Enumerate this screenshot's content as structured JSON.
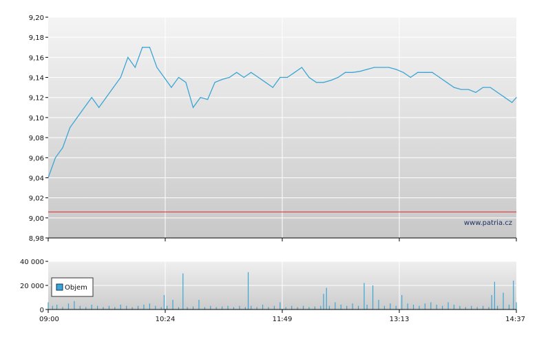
{
  "chart_data": [
    {
      "type": "line",
      "title": "",
      "xlabel": "",
      "ylabel": "",
      "ylim": [
        8.98,
        9.2
      ],
      "y_ticks": [
        "8,98",
        "9,00",
        "9,02",
        "9,04",
        "9,06",
        "9,08",
        "9,10",
        "9,12",
        "9,14",
        "9,16",
        "9,18",
        "9,20"
      ],
      "x_ticks": [
        "09:00",
        "10:24",
        "11:49",
        "13:13",
        "14:37"
      ],
      "reference_line": 9.006,
      "reference_color": "#e02020",
      "line_color": "#3aa5d5",
      "watermark": "www.patria.cz",
      "grid": true,
      "series": [
        {
          "values": [
            [
              0,
              9.04
            ],
            [
              5,
              9.06
            ],
            [
              10,
              9.07
            ],
            [
              15,
              9.09
            ],
            [
              20,
              9.1
            ],
            [
              25,
              9.11
            ],
            [
              30,
              9.12
            ],
            [
              35,
              9.11
            ],
            [
              40,
              9.12
            ],
            [
              45,
              9.13
            ],
            [
              50,
              9.14
            ],
            [
              55,
              9.16
            ],
            [
              60,
              9.15
            ],
            [
              65,
              9.17
            ],
            [
              70,
              9.17
            ],
            [
              75,
              9.15
            ],
            [
              80,
              9.14
            ],
            [
              85,
              9.13
            ],
            [
              90,
              9.14
            ],
            [
              95,
              9.135
            ],
            [
              100,
              9.11
            ],
            [
              105,
              9.12
            ],
            [
              110,
              9.118
            ],
            [
              115,
              9.135
            ],
            [
              120,
              9.138
            ],
            [
              125,
              9.14
            ],
            [
              130,
              9.145
            ],
            [
              135,
              9.14
            ],
            [
              140,
              9.145
            ],
            [
              145,
              9.14
            ],
            [
              150,
              9.135
            ],
            [
              155,
              9.13
            ],
            [
              160,
              9.14
            ],
            [
              165,
              9.14
            ],
            [
              170,
              9.145
            ],
            [
              175,
              9.15
            ],
            [
              180,
              9.14
            ],
            [
              185,
              9.135
            ],
            [
              190,
              9.135
            ],
            [
              195,
              9.137
            ],
            [
              200,
              9.14
            ],
            [
              205,
              9.145
            ],
            [
              210,
              9.145
            ],
            [
              215,
              9.146
            ],
            [
              220,
              9.148
            ],
            [
              225,
              9.15
            ],
            [
              230,
              9.15
            ],
            [
              235,
              9.15
            ],
            [
              240,
              9.148
            ],
            [
              245,
              9.145
            ],
            [
              250,
              9.14
            ],
            [
              255,
              9.145
            ],
            [
              260,
              9.145
            ],
            [
              265,
              9.145
            ],
            [
              270,
              9.14
            ],
            [
              275,
              9.135
            ],
            [
              280,
              9.13
            ],
            [
              285,
              9.128
            ],
            [
              290,
              9.128
            ],
            [
              295,
              9.125
            ],
            [
              300,
              9.13
            ],
            [
              305,
              9.13
            ],
            [
              310,
              9.125
            ],
            [
              315,
              9.12
            ],
            [
              320,
              9.115
            ],
            [
              323,
              9.12
            ]
          ]
        }
      ]
    },
    {
      "type": "bar",
      "title": "",
      "ylim": [
        0,
        40000
      ],
      "y_ticks": [
        "0",
        "20 000",
        "40 000"
      ],
      "x_ticks": [
        "09:00",
        "10:24",
        "11:49",
        "13:13",
        "14:37"
      ],
      "legend": "Objem",
      "legend_position": "left",
      "bar_color": "#3aa5d5",
      "grid": true,
      "values": [
        [
          0,
          6000
        ],
        [
          3,
          3000
        ],
        [
          6,
          4000
        ],
        [
          10,
          2000
        ],
        [
          14,
          5000
        ],
        [
          18,
          7000
        ],
        [
          22,
          3000
        ],
        [
          26,
          2000
        ],
        [
          30,
          4000
        ],
        [
          34,
          3000
        ],
        [
          38,
          2000
        ],
        [
          42,
          3000
        ],
        [
          46,
          2000
        ],
        [
          50,
          4000
        ],
        [
          54,
          3000
        ],
        [
          58,
          2000
        ],
        [
          62,
          3000
        ],
        [
          66,
          4000
        ],
        [
          70,
          5000
        ],
        [
          74,
          3000
        ],
        [
          78,
          2000
        ],
        [
          80,
          12000
        ],
        [
          82,
          3000
        ],
        [
          86,
          8000
        ],
        [
          90,
          2000
        ],
        [
          93,
          30000
        ],
        [
          96,
          2000
        ],
        [
          100,
          2500
        ],
        [
          104,
          8000
        ],
        [
          108,
          2000
        ],
        [
          112,
          3000
        ],
        [
          116,
          2000
        ],
        [
          120,
          2500
        ],
        [
          124,
          3000
        ],
        [
          128,
          2000
        ],
        [
          132,
          3000
        ],
        [
          136,
          2000
        ],
        [
          138,
          31000
        ],
        [
          140,
          3000
        ],
        [
          144,
          2000
        ],
        [
          148,
          4000
        ],
        [
          152,
          2000
        ],
        [
          156,
          3000
        ],
        [
          160,
          6000
        ],
        [
          164,
          2000
        ],
        [
          168,
          3000
        ],
        [
          172,
          2000
        ],
        [
          176,
          3000
        ],
        [
          180,
          2000
        ],
        [
          184,
          2500
        ],
        [
          188,
          3000
        ],
        [
          190,
          13000
        ],
        [
          192,
          18000
        ],
        [
          194,
          3000
        ],
        [
          198,
          6000
        ],
        [
          202,
          4000
        ],
        [
          206,
          3000
        ],
        [
          210,
          5000
        ],
        [
          214,
          3000
        ],
        [
          218,
          22000
        ],
        [
          220,
          4000
        ],
        [
          224,
          20000
        ],
        [
          228,
          8000
        ],
        [
          232,
          3000
        ],
        [
          236,
          5000
        ],
        [
          240,
          3000
        ],
        [
          244,
          12000
        ],
        [
          248,
          5000
        ],
        [
          252,
          4000
        ],
        [
          256,
          3000
        ],
        [
          260,
          5000
        ],
        [
          264,
          6000
        ],
        [
          268,
          4000
        ],
        [
          272,
          3000
        ],
        [
          276,
          6000
        ],
        [
          280,
          4000
        ],
        [
          284,
          3000
        ],
        [
          288,
          2000
        ],
        [
          292,
          3000
        ],
        [
          296,
          2000
        ],
        [
          300,
          3000
        ],
        [
          304,
          2000
        ],
        [
          306,
          12000
        ],
        [
          308,
          23000
        ],
        [
          310,
          3000
        ],
        [
          314,
          14000
        ],
        [
          318,
          4000
        ],
        [
          321,
          24000
        ],
        [
          323,
          6000
        ]
      ]
    }
  ]
}
